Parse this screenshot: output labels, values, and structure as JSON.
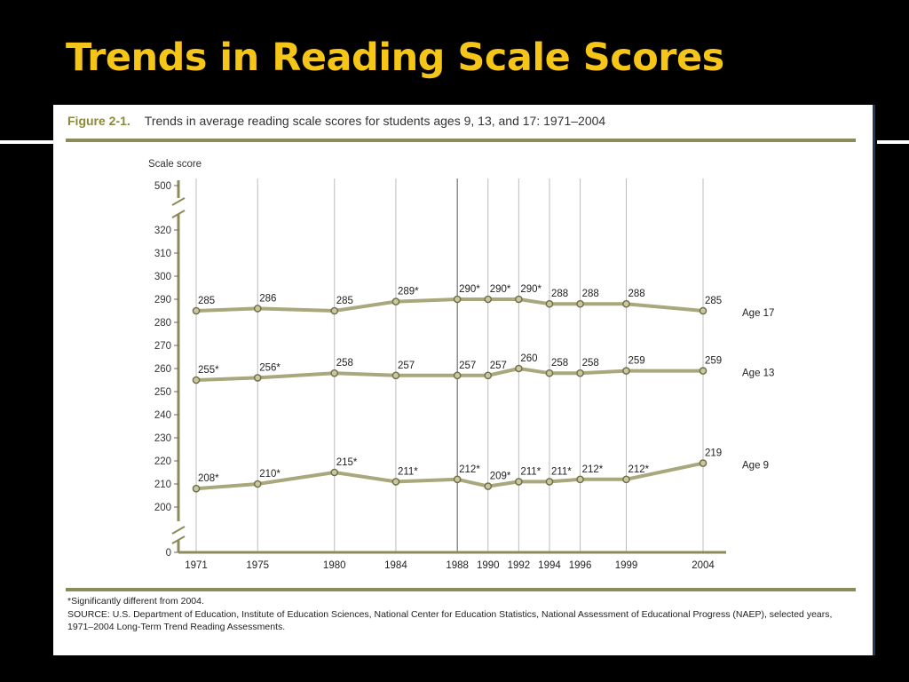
{
  "slide": {
    "title": "Trends in Reading Scale Scores"
  },
  "figure": {
    "label": "Figure 2-1.",
    "caption": "Trends in average reading scale scores for students ages 9, 13, and 17: 1971–2004",
    "footnote_sig": "*Significantly different from 2004.",
    "source_line1": "SOURCE: U.S. Department of Education, Institute of Education Sciences, National Center for Education Statistics, National Assessment of Educational Progress (NAEP), selected years,",
    "source_line2": "1971–2004 Long-Term Trend Reading Assessments."
  },
  "chart_data": {
    "type": "line",
    "ylabel": "Scale score",
    "x": [
      1971,
      1975,
      1980,
      1984,
      1988,
      1990,
      1992,
      1994,
      1996,
      1999,
      2004
    ],
    "y_ticks": [
      0,
      200,
      210,
      220,
      230,
      240,
      250,
      260,
      270,
      280,
      290,
      300,
      310,
      320,
      500
    ],
    "y_break": true,
    "ylim": [
      200,
      320
    ],
    "series": [
      {
        "name": "Age 17",
        "values": [
          285,
          286,
          285,
          289,
          290,
          290,
          290,
          288,
          288,
          288,
          285
        ],
        "labels": [
          "285",
          "286",
          "285",
          "289*",
          "290*",
          "290*",
          "290*",
          "288",
          "288",
          "288",
          "285"
        ]
      },
      {
        "name": "Age 13",
        "values": [
          255,
          256,
          258,
          257,
          257,
          257,
          260,
          258,
          258,
          259,
          259
        ],
        "labels": [
          "255*",
          "256*",
          "258",
          "257",
          "257",
          "257",
          "260",
          "258",
          "258",
          "259",
          "259"
        ]
      },
      {
        "name": "Age 9",
        "values": [
          208,
          210,
          215,
          211,
          212,
          209,
          211,
          211,
          212,
          212,
          219
        ],
        "labels": [
          "208*",
          "210*",
          "215*",
          "211*",
          "212*",
          "209*",
          "211*",
          "211*",
          "212*",
          "212*",
          "219"
        ]
      }
    ],
    "colors": {
      "line": "#a9a77c",
      "marker_fill": "#c9c7a1",
      "marker_stroke": "#6e6c43",
      "rule": "#8c8c5a"
    }
  }
}
